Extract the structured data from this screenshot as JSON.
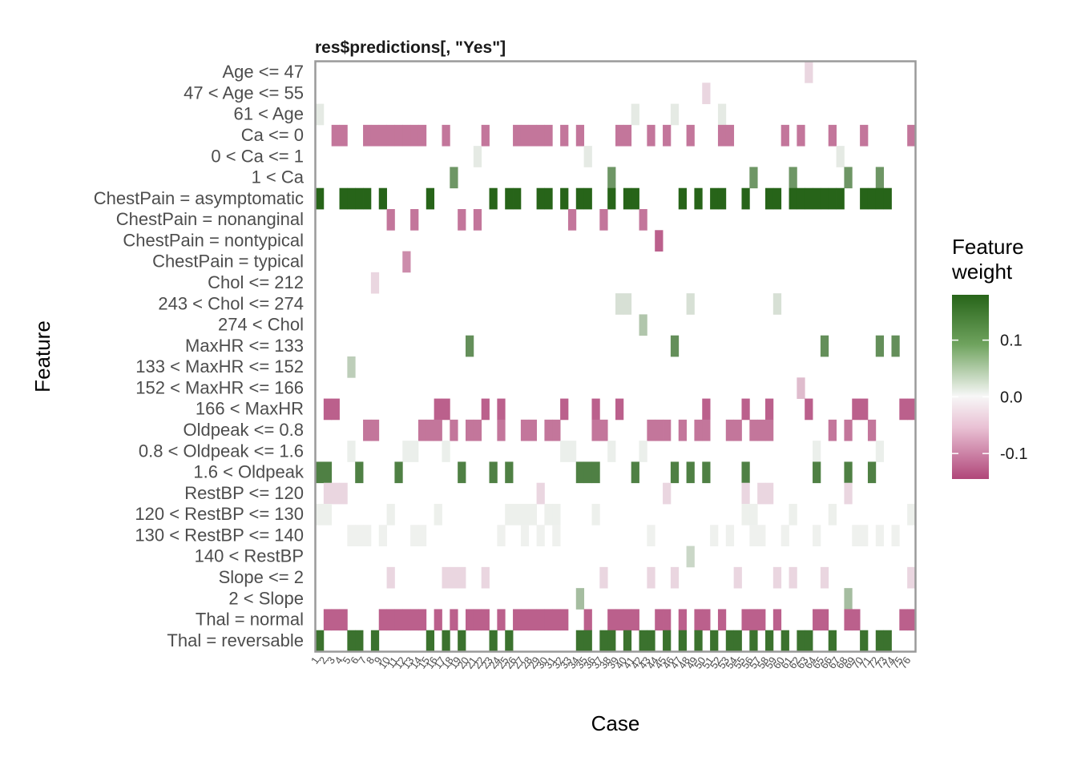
{
  "chart_data": {
    "type": "heatmap",
    "title": "res$predictions[, \"Yes\"]",
    "xlabel": "Case",
    "ylabel": "Feature",
    "x_count": 76,
    "x_tick_labels": [
      "1",
      "2",
      "3",
      "4",
      "5",
      "6",
      "7",
      "8",
      "9",
      "10",
      "11",
      "12",
      "13",
      "14",
      "15",
      "16",
      "17",
      "18",
      "19",
      "20",
      "21",
      "22",
      "23",
      "24",
      "25",
      "26",
      "27",
      "28",
      "29",
      "30",
      "31",
      "32",
      "33",
      "34",
      "35",
      "36",
      "37",
      "38",
      "39",
      "40",
      "41",
      "42",
      "43",
      "44",
      "45",
      "46",
      "47",
      "48",
      "49",
      "50",
      "51",
      "52",
      "53",
      "54",
      "55",
      "56",
      "57",
      "58",
      "59",
      "60",
      "61",
      "62",
      "63",
      "64",
      "65",
      "66",
      "67",
      "68",
      "69",
      "70",
      "71",
      "72",
      "73",
      "74",
      "75",
      "76"
    ],
    "features": [
      "Age <= 47",
      "47 < Age <= 55",
      "61 < Age",
      "Ca <= 0",
      "0 < Ca <= 1",
      "1 < Ca",
      "ChestPain = asymptomatic",
      "ChestPain = nonanginal",
      "ChestPain = nontypical",
      "ChestPain = typical",
      "Chol <= 212",
      "243 < Chol <= 274",
      "274 < Chol",
      "MaxHR <= 133",
      "133 < MaxHR <= 152",
      "152 < MaxHR <= 166",
      "166 < MaxHR",
      "Oldpeak <= 0.8",
      "0.8 < Oldpeak <= 1.6",
      "1.6 < Oldpeak",
      "RestBP <= 120",
      "120 < RestBP <= 130",
      "130 < RestBP <= 140",
      "140 < RestBP",
      "Slope <= 2",
      "2 < Slope",
      "Thal = normal",
      "Thal = reversable"
    ],
    "cells": [
      {
        "feature": "Age <= 47",
        "weight": -0.02,
        "cases": [
          63
        ]
      },
      {
        "feature": "47 < Age <= 55",
        "weight": -0.02,
        "cases": [
          50
        ]
      },
      {
        "feature": "61 < Age",
        "weight": 0.01,
        "cases": [
          1,
          41,
          46,
          52
        ]
      },
      {
        "feature": "Ca <= 0",
        "weight": -0.1,
        "cases": [
          3,
          4,
          7,
          8,
          9,
          10,
          11,
          12,
          13,
          14,
          17,
          22,
          26,
          27,
          28,
          29,
          30,
          32,
          34,
          39,
          40,
          43,
          45,
          48,
          52,
          53,
          60,
          62,
          66,
          70,
          76
        ]
      },
      {
        "feature": "0 < Ca <= 1",
        "weight": 0.01,
        "cases": [
          21,
          35,
          67
        ]
      },
      {
        "feature": "1 < Ca",
        "weight": 0.11,
        "cases": [
          18,
          38,
          56,
          61,
          68,
          72
        ]
      },
      {
        "feature": "ChestPain = asymptomatic",
        "weight": 0.18,
        "cases": [
          1,
          4,
          5,
          6,
          7,
          9,
          15,
          23,
          25,
          26,
          29,
          30,
          32,
          34,
          35,
          38,
          40,
          41,
          47,
          49,
          51,
          52,
          55,
          58,
          59,
          61,
          62,
          63,
          64,
          65,
          66,
          67,
          70,
          71,
          72,
          73
        ]
      },
      {
        "feature": "ChestPain = nonanginal",
        "weight": -0.1,
        "cases": [
          10,
          13,
          19,
          21,
          33,
          37,
          42
        ]
      },
      {
        "feature": "ChestPain = nontypical",
        "weight": -0.12,
        "cases": [
          44
        ]
      },
      {
        "feature": "ChestPain = typical",
        "weight": -0.08,
        "cases": [
          12
        ]
      },
      {
        "feature": "Chol <= 212",
        "weight": -0.02,
        "cases": [
          8
        ]
      },
      {
        "feature": "243 < Chol <= 274",
        "weight": 0.02,
        "cases": [
          39,
          40,
          48,
          59
        ]
      },
      {
        "feature": "274 < Chol",
        "weight": 0.05,
        "cases": [
          42
        ]
      },
      {
        "feature": "MaxHR <= 133",
        "weight": 0.12,
        "cases": [
          20,
          46,
          65,
          72,
          74
        ]
      },
      {
        "feature": "133 < MaxHR <= 152",
        "weight": 0.04,
        "cases": [
          5
        ]
      },
      {
        "feature": "152 < MaxHR <= 166",
        "weight": -0.04,
        "cases": [
          62
        ]
      },
      {
        "feature": "166 < MaxHR",
        "weight": -0.12,
        "cases": [
          2,
          3,
          16,
          17,
          22,
          24,
          32,
          36,
          39,
          50,
          55,
          58,
          63,
          69,
          70,
          75,
          76
        ]
      },
      {
        "feature": "Oldpeak <= 0.8",
        "weight": -0.1,
        "cases": [
          7,
          8,
          14,
          15,
          16,
          18,
          20,
          21,
          24,
          27,
          28,
          30,
          31,
          36,
          37,
          43,
          44,
          45,
          47,
          49,
          50,
          53,
          54,
          56,
          57,
          58,
          66,
          68,
          71
        ]
      },
      {
        "feature": "0.8 < Oldpeak <= 1.6",
        "weight": 0.006,
        "cases": [
          5,
          12,
          13,
          17,
          32,
          33,
          38,
          42,
          64,
          72
        ]
      },
      {
        "feature": "1.6 < Oldpeak",
        "weight": 0.14,
        "cases": [
          1,
          2,
          6,
          11,
          19,
          23,
          25,
          34,
          35,
          36,
          41,
          46,
          48,
          50,
          55,
          64,
          68,
          71
        ]
      },
      {
        "feature": "RestBP <= 120",
        "weight": -0.02,
        "cases": [
          2,
          3,
          4,
          29,
          45,
          55,
          57,
          58,
          68
        ]
      },
      {
        "feature": "120 < RestBP <= 130",
        "weight": 0.005,
        "cases": [
          1,
          2,
          10,
          16,
          25,
          26,
          27,
          28,
          30,
          31,
          36,
          55,
          56,
          61,
          66,
          76
        ]
      },
      {
        "feature": "130 < RestBP <= 140",
        "weight": 0.004,
        "cases": [
          5,
          6,
          7,
          9,
          13,
          14,
          24,
          27,
          29,
          31,
          43,
          51,
          53,
          56,
          57,
          60,
          64,
          69,
          70,
          72,
          74
        ]
      },
      {
        "feature": "140 < RestBP",
        "weight": 0.03,
        "cases": [
          48
        ]
      },
      {
        "feature": "Slope <= 2",
        "weight": -0.02,
        "cases": [
          10,
          17,
          18,
          19,
          22,
          37,
          43,
          46,
          54,
          59,
          61,
          65,
          76
        ]
      },
      {
        "feature": "2 < Slope",
        "weight": 0.06,
        "cases": [
          34,
          68
        ]
      },
      {
        "feature": "Thal = normal",
        "weight": -0.12,
        "cases": [
          2,
          3,
          4,
          9,
          10,
          11,
          12,
          13,
          14,
          16,
          18,
          20,
          21,
          22,
          24,
          26,
          27,
          28,
          29,
          30,
          31,
          32,
          35,
          38,
          39,
          40,
          41,
          44,
          45,
          47,
          49,
          50,
          52,
          55,
          56,
          57,
          59,
          64,
          65,
          68,
          69,
          75,
          76
        ]
      },
      {
        "feature": "Thal = reversable",
        "weight": 0.16,
        "cases": [
          1,
          5,
          6,
          8,
          15,
          17,
          19,
          23,
          25,
          34,
          35,
          37,
          38,
          40,
          42,
          43,
          45,
          47,
          49,
          51,
          53,
          54,
          56,
          58,
          60,
          62,
          63,
          66,
          70,
          72,
          73
        ]
      }
    ],
    "legend": {
      "title_lines": [
        "Feature",
        "weight"
      ],
      "ticks": [
        0.1,
        0.0,
        -0.1
      ],
      "tick_labels": [
        "0.1",
        "0.0",
        "-0.1"
      ],
      "range": [
        -0.145,
        0.18
      ],
      "colors": {
        "high": "#276419",
        "mid": "#f7f7f7",
        "low": "#b04679"
      }
    }
  }
}
